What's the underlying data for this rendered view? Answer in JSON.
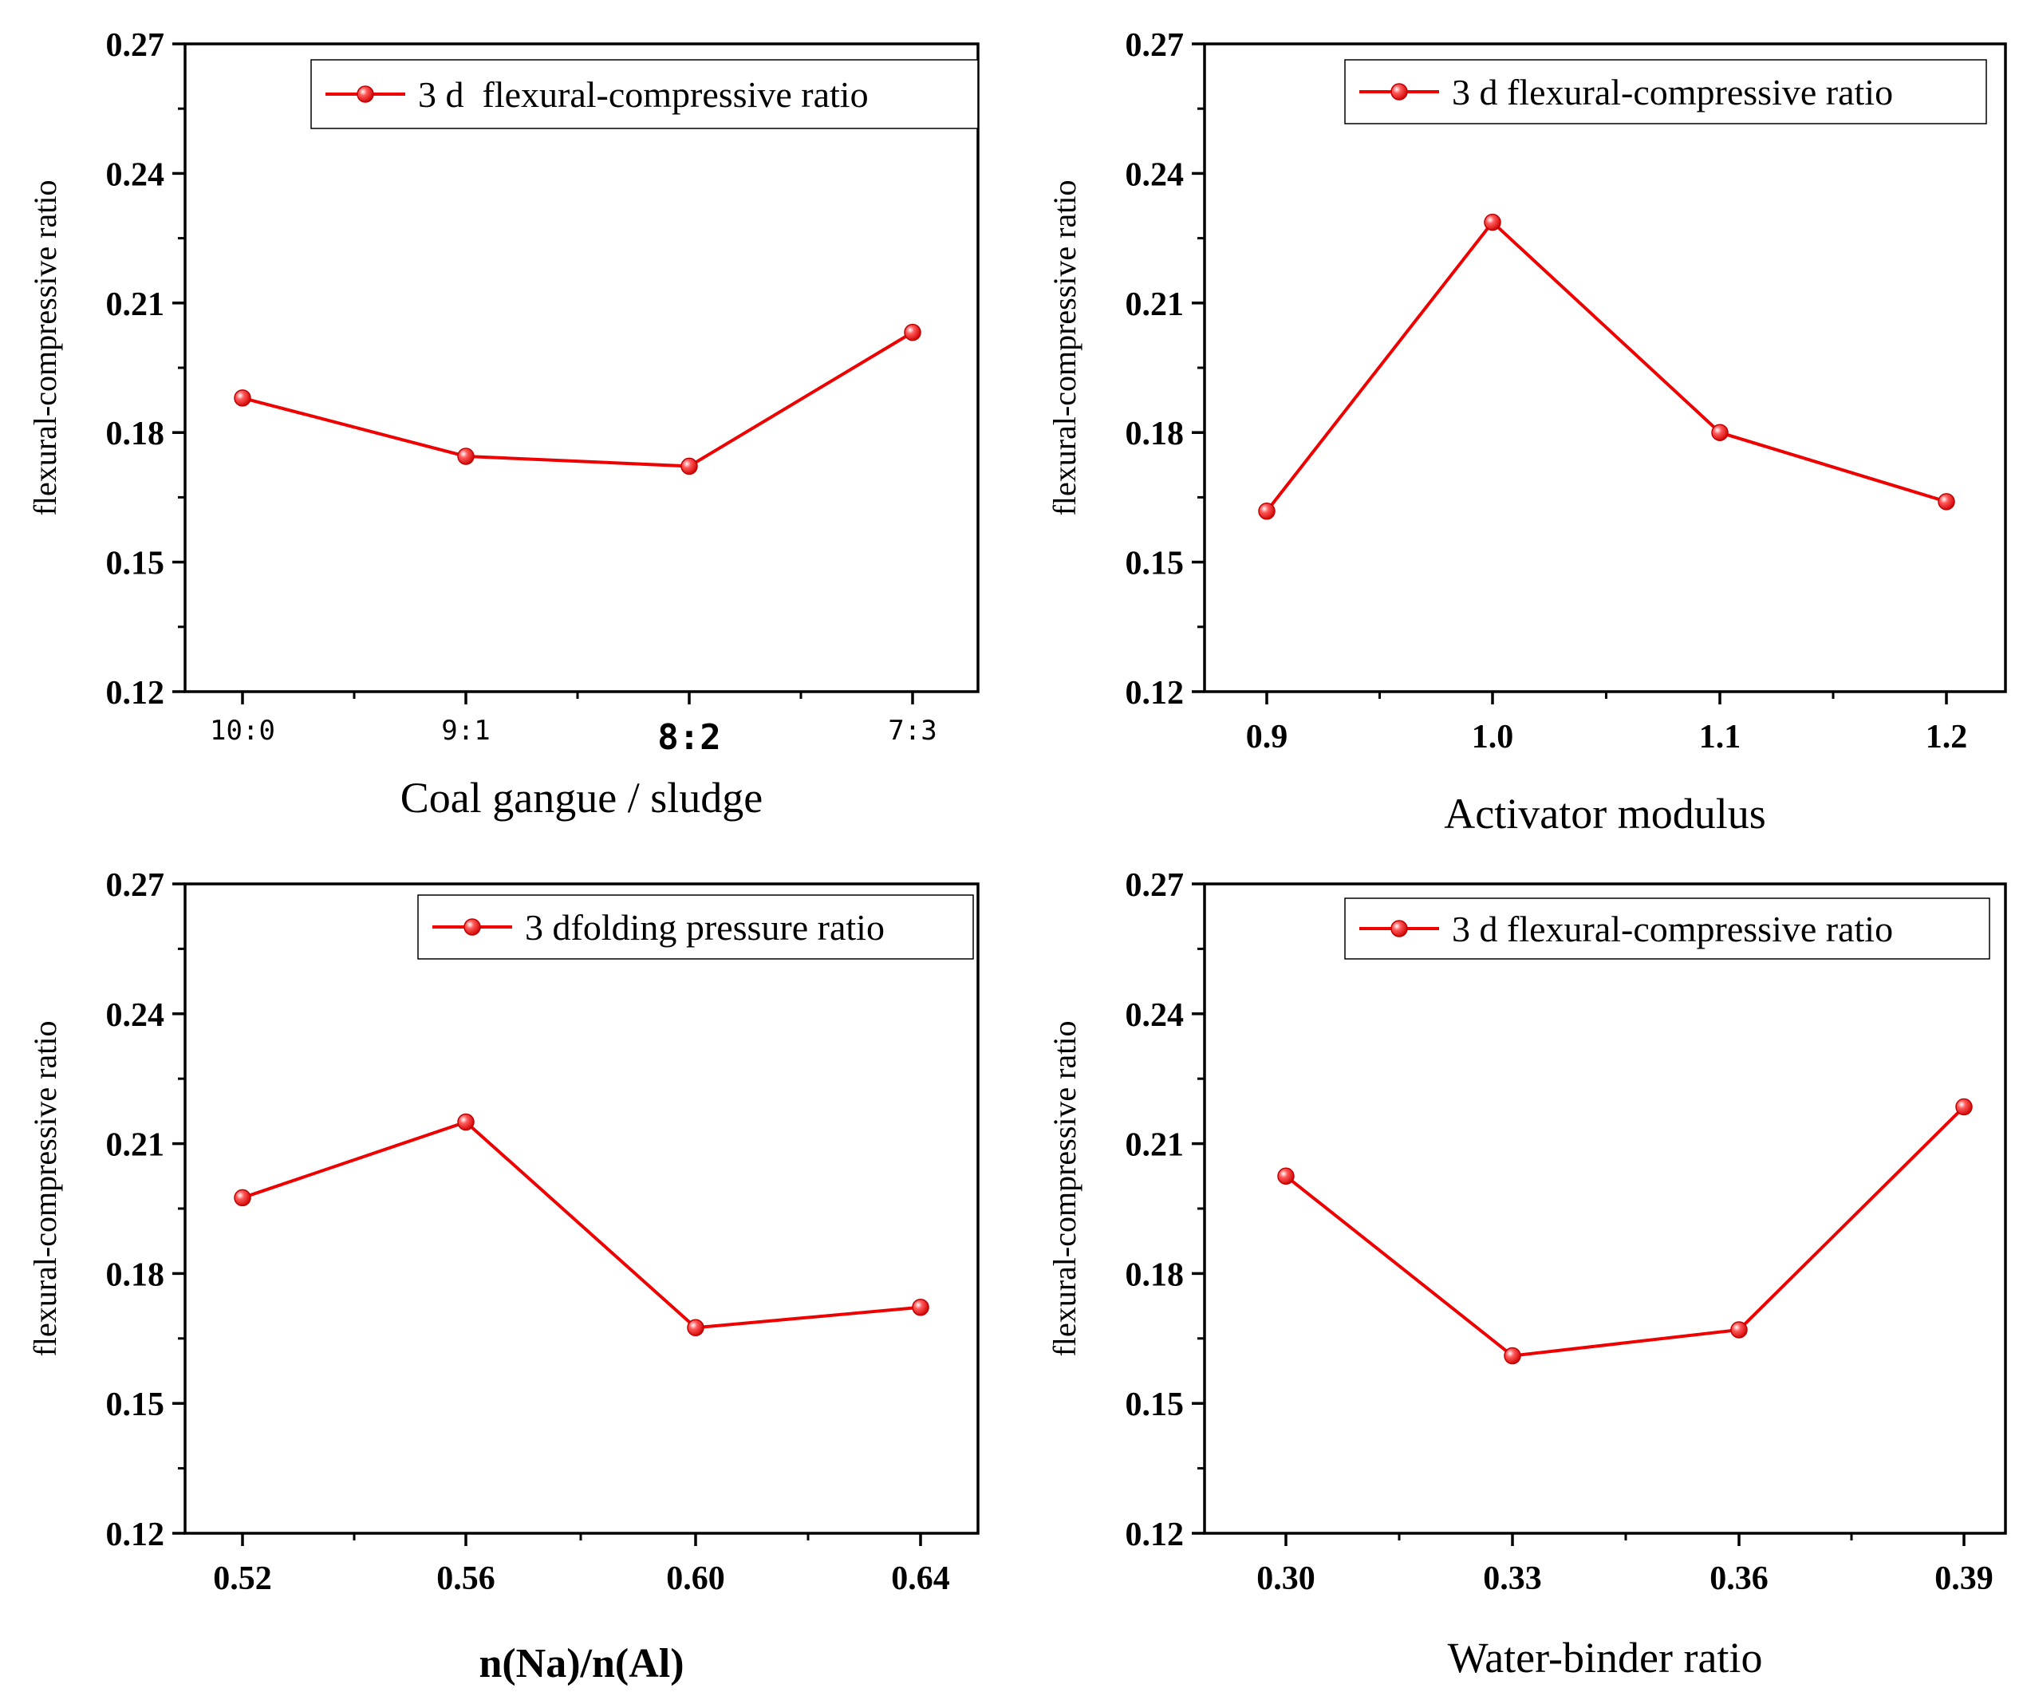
{
  "colors": {
    "series": "#ee0000",
    "axis": "#000000"
  },
  "chart_data": [
    {
      "type": "line",
      "categories": [
        "10:0",
        "9:1",
        "8:2",
        "7:3"
      ],
      "series": [
        {
          "name": "3 d  flexural-compressive ratio",
          "values": [
            0.188,
            0.1745,
            0.1722,
            0.2032
          ]
        }
      ],
      "xlabel": "Coal gangue / sludge",
      "ylabel": "flexural-compressive ratio",
      "ylim": [
        0.12,
        0.27
      ],
      "yticks": [
        "0.12",
        "0.15",
        "0.18",
        "0.21",
        "0.24",
        "0.27"
      ],
      "legend": "top-right"
    },
    {
      "type": "line",
      "categories": [
        "0.9",
        "1.0",
        "1.1",
        "1.2"
      ],
      "series": [
        {
          "name": "3 d flexural-compressive ratio",
          "values": [
            0.1618,
            0.2287,
            0.18,
            0.164
          ]
        }
      ],
      "xlabel": "Activator modulus",
      "ylabel": "flexural-compressive ratio",
      "ylim": [
        0.12,
        0.27
      ],
      "yticks": [
        "0.12",
        "0.15",
        "0.18",
        "0.21",
        "0.24",
        "0.27"
      ],
      "legend": "top-right"
    },
    {
      "type": "line",
      "categories": [
        "0.52",
        "0.56",
        "0.60",
        "0.64"
      ],
      "series": [
        {
          "name": "3 dfolding pressure ratio",
          "values": [
            0.1975,
            0.215,
            0.1675,
            0.1722
          ]
        }
      ],
      "xlabel": "n(Na)/n(Al)",
      "ylabel": "flexural-compressive ratio",
      "ylim": [
        0.12,
        0.27
      ],
      "yticks": [
        "0.12",
        "0.15",
        "0.18",
        "0.21",
        "0.24",
        "0.27"
      ],
      "legend": "top-right"
    },
    {
      "type": "line",
      "categories": [
        "0.30",
        "0.33",
        "0.36",
        "0.39"
      ],
      "series": [
        {
          "name": "3 d flexural-compressive ratio",
          "values": [
            0.2025,
            0.161,
            0.167,
            0.2185
          ]
        }
      ],
      "xlabel": "Water-binder ratio",
      "ylabel": "flexural-compressive ratio",
      "ylim": [
        0.12,
        0.27
      ],
      "yticks": [
        "0.12",
        "0.15",
        "0.18",
        "0.21",
        "0.24",
        "0.27"
      ],
      "legend": "top-right"
    }
  ]
}
